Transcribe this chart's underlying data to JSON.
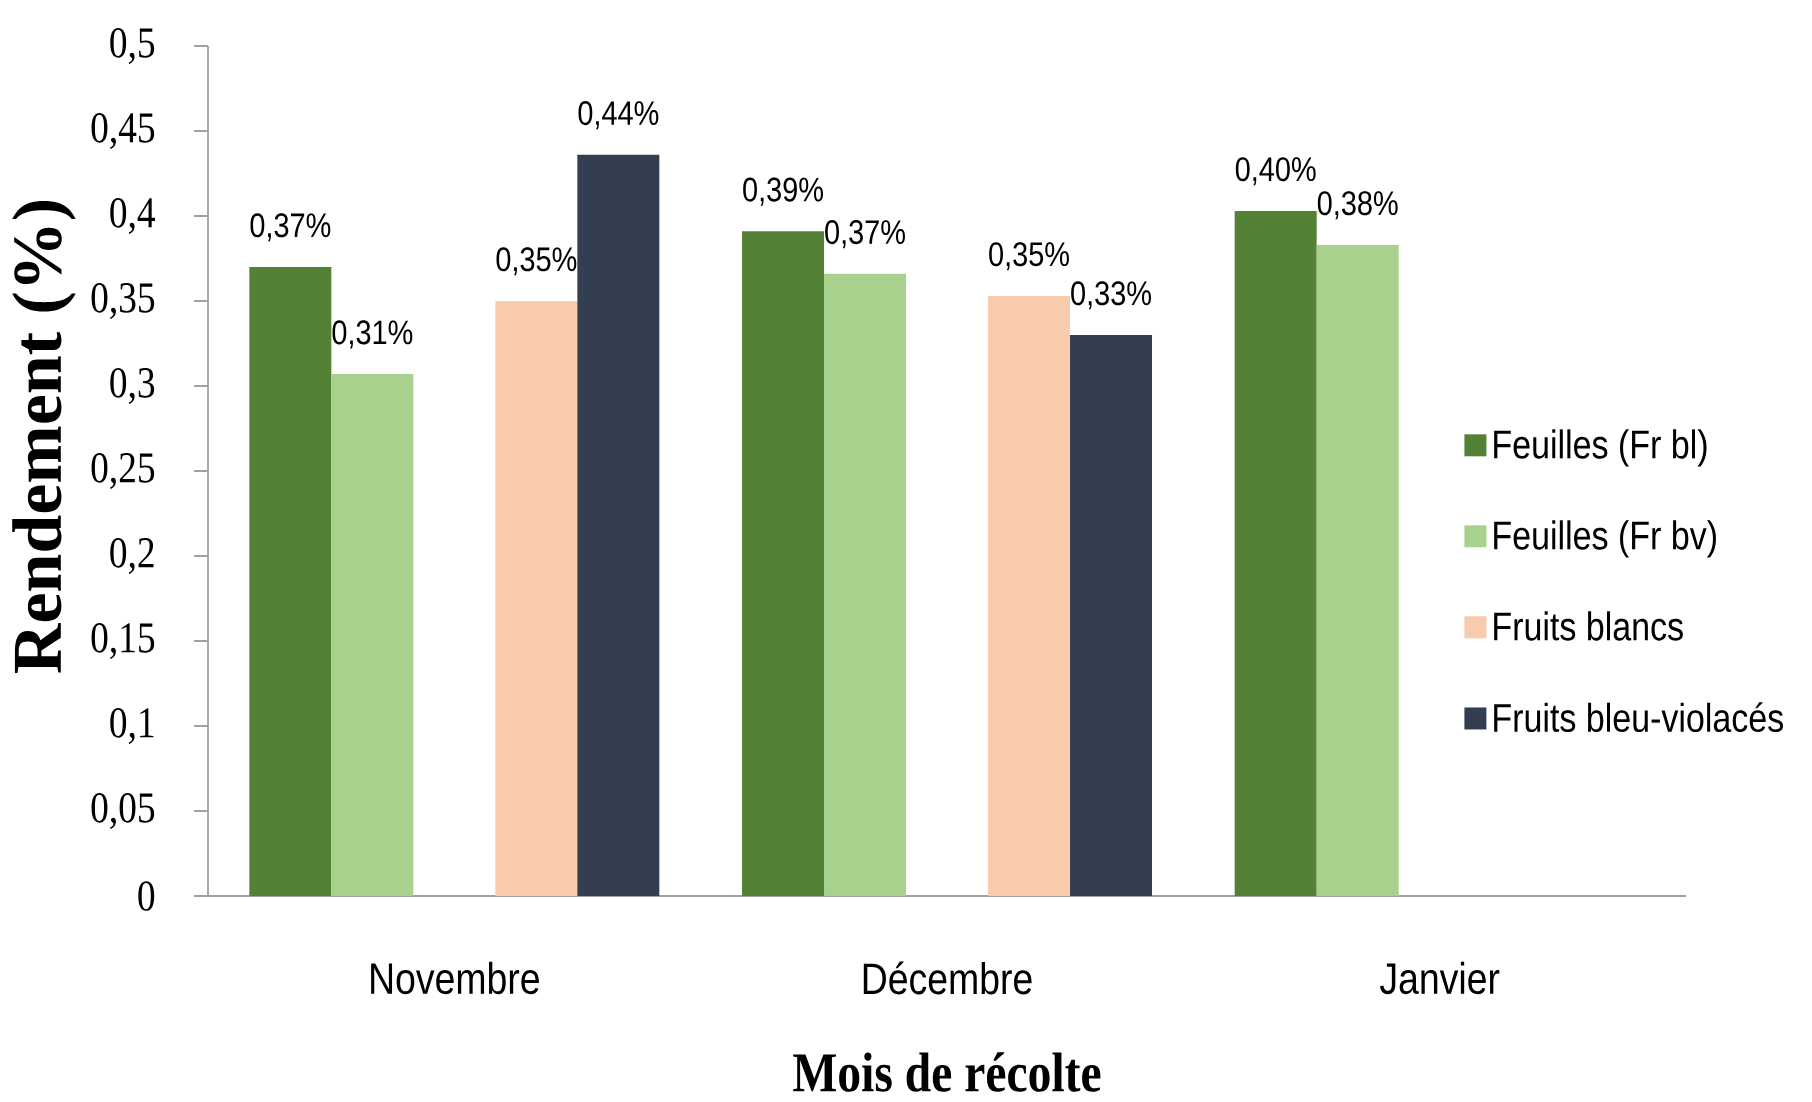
{
  "chart_data": {
    "type": "bar",
    "xlabel": "Mois de récolte",
    "ylabel": "Rendement (%)",
    "categories": [
      "Novembre",
      "Décembre",
      "Janvier"
    ],
    "series": [
      {
        "name": "Feuilles (Fr bl)",
        "color": "#538135",
        "values": [
          0.37,
          0.391,
          0.403
        ],
        "value_labels": [
          "0,37%",
          "0,39%",
          "0,40%"
        ]
      },
      {
        "name": "Feuilles (Fr bv)",
        "color": "#a9d18e",
        "values": [
          0.307,
          0.366,
          0.383
        ],
        "value_labels": [
          "0,31%",
          "0,37%",
          "0,38%"
        ]
      },
      {
        "name": "Fruits blancs",
        "color": "#f8cbad",
        "values": [
          0.35,
          0.353,
          null
        ],
        "value_labels": [
          "0,35%",
          "0,35%",
          null
        ]
      },
      {
        "name": "Fruits bleu-violacés",
        "color": "#333f50",
        "values": [
          0.436,
          0.33,
          null
        ],
        "value_labels": [
          "0,44%",
          "0,33%",
          null
        ]
      }
    ],
    "ylim": [
      0,
      0.5
    ],
    "yticks": [
      0,
      {
        "value": 0.05,
        "label": "0,05"
      },
      {
        "value": 0.1,
        "label": "0,1"
      },
      {
        "value": 0.15,
        "label": "0,15"
      },
      {
        "value": 0.2,
        "label": "0,2"
      },
      {
        "value": 0.25,
        "label": "0,25"
      },
      {
        "value": 0.3,
        "label": "0,3"
      },
      {
        "value": 0.35,
        "label": "0,35"
      },
      {
        "value": 0.4,
        "label": "0,4"
      },
      {
        "value": 0.45,
        "label": "0,45"
      },
      {
        "value": 0.5,
        "label": "0,5"
      }
    ],
    "legend": "right"
  }
}
